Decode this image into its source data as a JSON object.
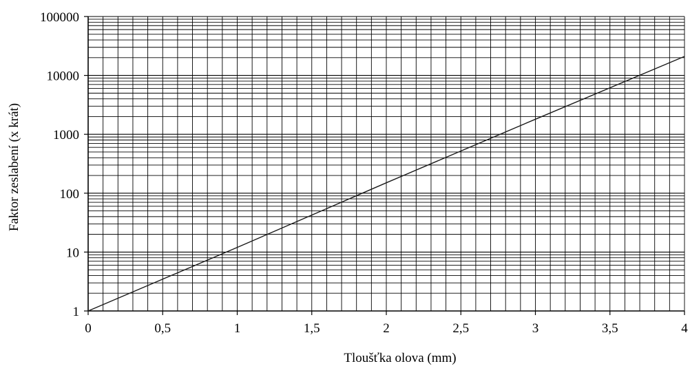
{
  "chart_data": {
    "type": "line",
    "title": "",
    "xlabel": "Tloušťka olova (mm)",
    "ylabel": "Faktor zeslabení (x krát)",
    "x_ticks": [
      "0",
      "0,5",
      "1",
      "1,5",
      "2",
      "2,5",
      "3",
      "3,5",
      "4"
    ],
    "x_tick_values": [
      0,
      0.5,
      1,
      1.5,
      2,
      2.5,
      3,
      3.5,
      4
    ],
    "y_ticks": [
      "1",
      "10",
      "100",
      "1000",
      "10000",
      "100000"
    ],
    "y_tick_values": [
      1,
      10,
      100,
      1000,
      10000,
      100000
    ],
    "xlim": [
      0,
      4
    ],
    "ylim": [
      1,
      100000
    ],
    "y_scale": "log",
    "x_minor_step": 0.1,
    "grid": true,
    "legend": "none",
    "series": [
      {
        "x": [
          0,
          1,
          2,
          3,
          4
        ],
        "y": [
          1,
          12,
          150,
          1800,
          21000
        ]
      }
    ],
    "colors": {
      "line": "#1a1a1a",
      "grid": "#000000",
      "axes": "#000000"
    }
  }
}
